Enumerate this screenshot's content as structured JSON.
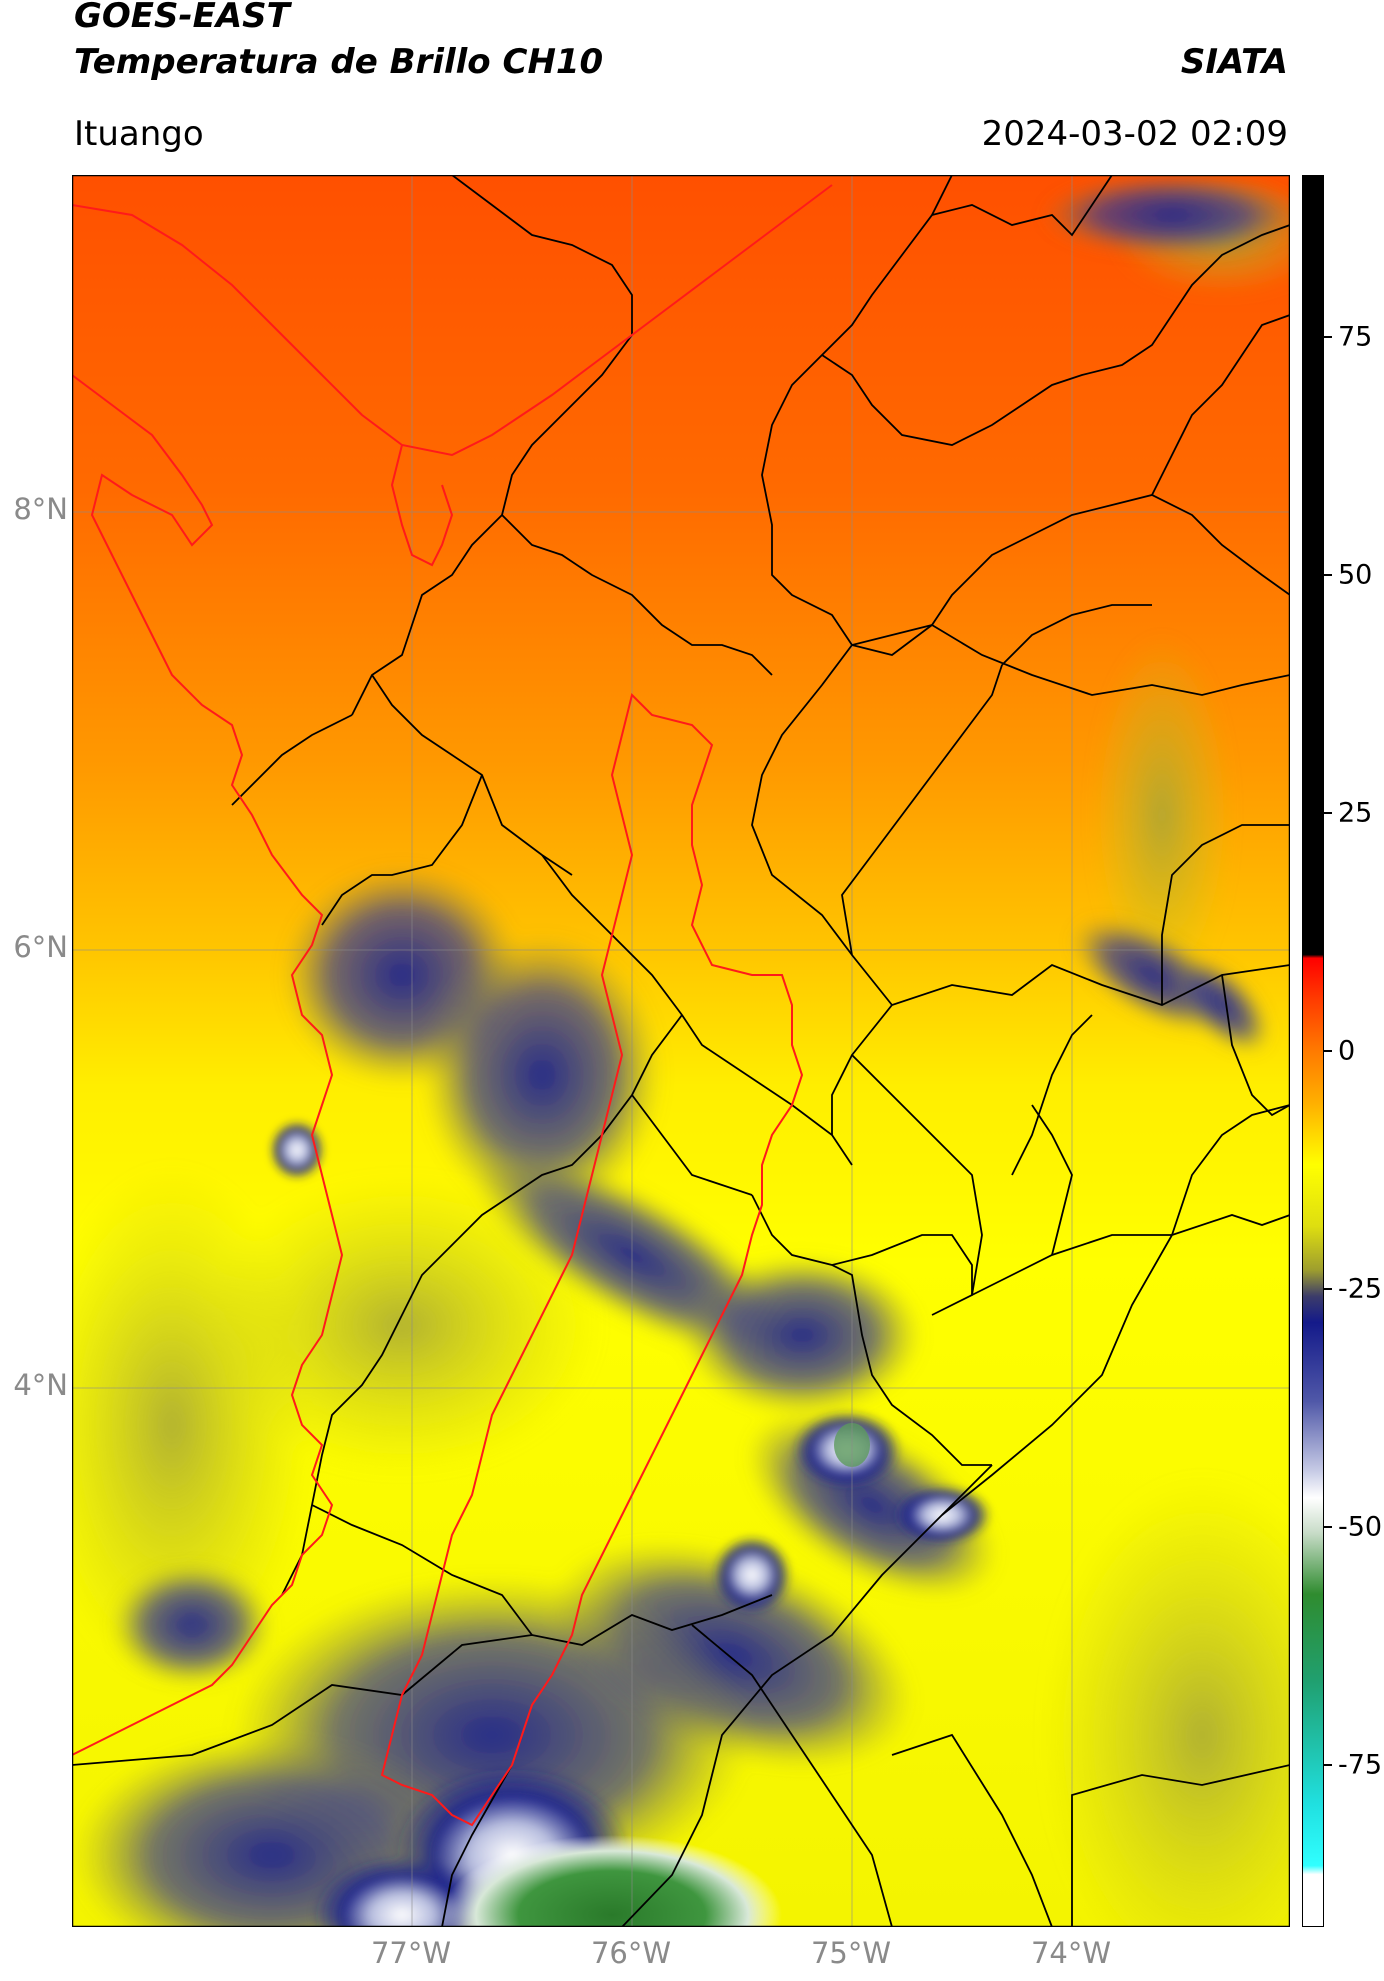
{
  "header": {
    "satellite": "GOES-EAST",
    "product": "Temperatura de Brillo CH10",
    "brand": "SIATA",
    "location": "Ituango",
    "datetime": "2024-03-02 02:09"
  },
  "map": {
    "lat_labels": [
      "8°N",
      "6°N",
      "4°N"
    ],
    "lon_labels": [
      "77°W",
      "76°W",
      "75°W",
      "74°W"
    ],
    "lat_values": [
      8,
      6,
      4
    ],
    "lon_values": [
      -77,
      -76,
      -75,
      -74
    ],
    "lon_range": [
      -78.55,
      -72.5
    ],
    "lat_range": [
      1.5,
      9.5
    ]
  },
  "colorbar": {
    "ticks": [
      "75",
      "50",
      "25",
      "0",
      "-25",
      "-50",
      "-75"
    ],
    "tick_values": [
      75,
      50,
      25,
      0,
      -25,
      -50,
      -75
    ],
    "range": [
      -92,
      92
    ],
    "colors": {
      "warm": "#ff4a00",
      "orange": "#ff9900",
      "yellow": "#ffff00",
      "olive": "#9e9e2e",
      "navy": "#141a8a",
      "white": "#ffffff",
      "green": "#2f8c2f",
      "cyan": "#20e0e0",
      "red": "#ff0000",
      "black": "#000000"
    }
  }
}
